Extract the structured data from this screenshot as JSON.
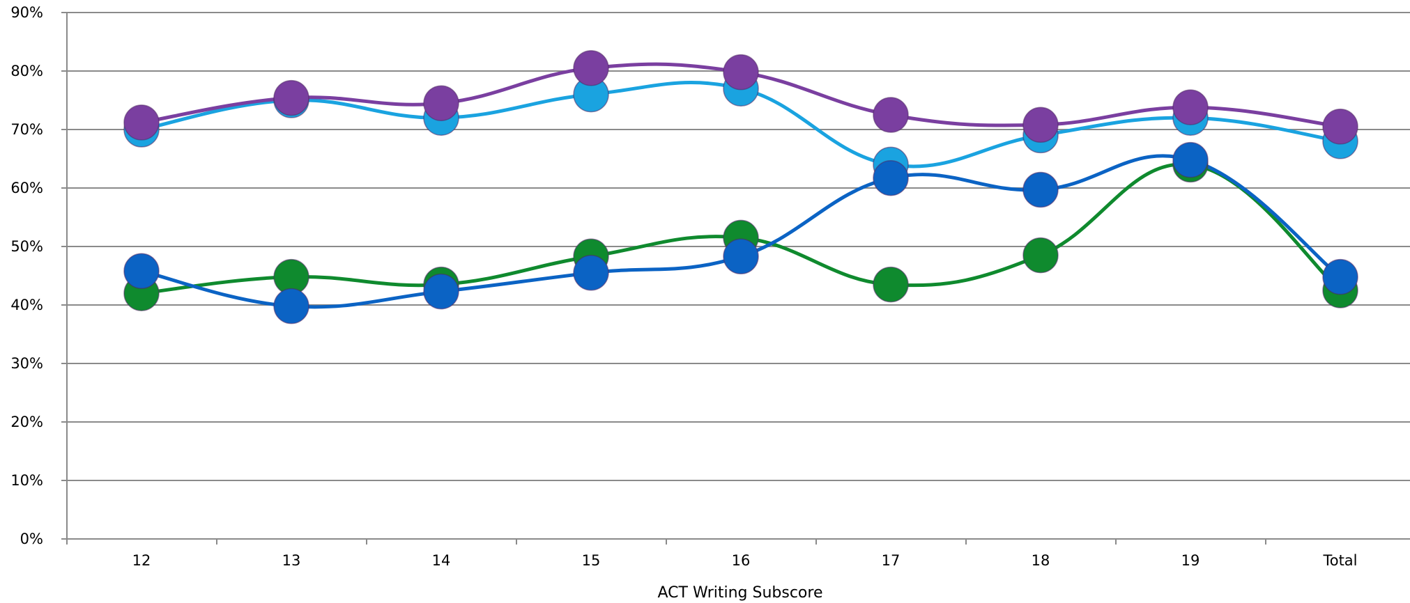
{
  "chart_data": {
    "type": "line",
    "xlabel": "ACT Writing Subscore",
    "ylabel": "",
    "categories": [
      "12",
      "13",
      "14",
      "15",
      "16",
      "17",
      "18",
      "19",
      "Total"
    ],
    "y_tick_labels": [
      "0%",
      "10%",
      "20%",
      "30%",
      "40%",
      "50%",
      "60%",
      "70%",
      "80%",
      "90%"
    ],
    "ylim": [
      0,
      90
    ],
    "grid": true,
    "legend": "none",
    "series": [
      {
        "color": "#0f8a2e",
        "values": [
          42,
          44.8,
          43.5,
          48.3,
          51.5,
          43.5,
          48.5,
          64,
          42.5
        ]
      },
      {
        "color": "#1aa3e0",
        "values": [
          70,
          75,
          72,
          76,
          77,
          64,
          69,
          72,
          68
        ]
      },
      {
        "color": "#0b63c4",
        "values": [
          45.8,
          39.8,
          42.3,
          45.5,
          48.3,
          61.7,
          59.7,
          64.8,
          44.8
        ]
      },
      {
        "color": "#7a3fa0",
        "values": [
          71.2,
          75.4,
          74.5,
          80.5,
          79.8,
          72.5,
          70.8,
          73.8,
          70.5
        ]
      }
    ]
  }
}
